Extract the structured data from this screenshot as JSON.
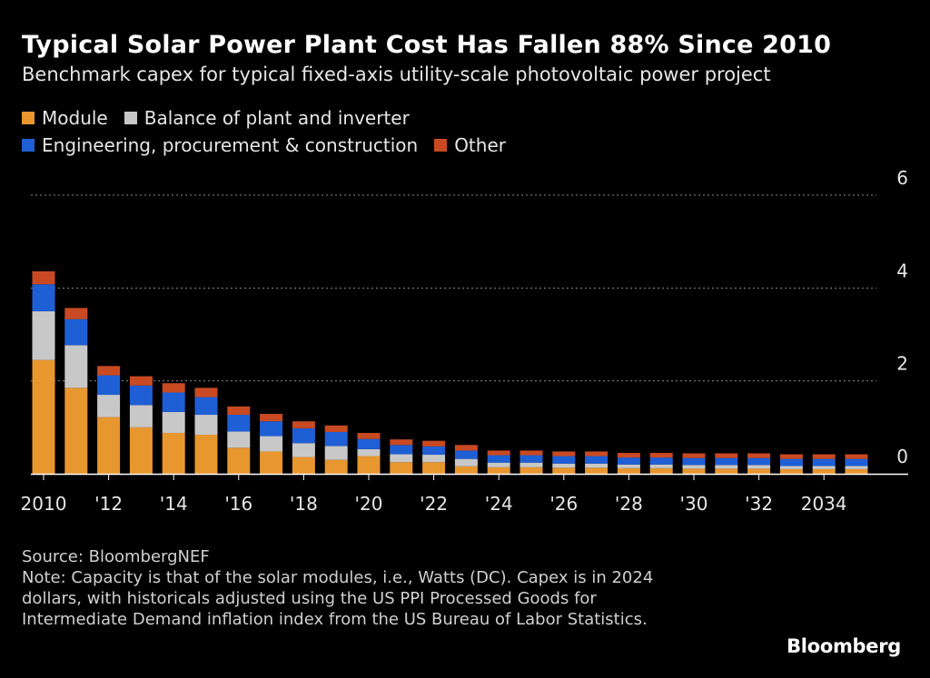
{
  "title": "Typical Solar Power Plant Cost Has Fallen 88% Since 2010",
  "subtitle": "Benchmark capex for typical fixed-axis utility-scale photovoltaic power project",
  "source": "Source: BloombergNEF",
  "note": "Note: Capacity is that of the solar modules, i.e., Watts (DC). Capex is in 2024 dollars, with historicals adjusted using the US PPI Processed Goods for Intermediate Demand inflation index from the US Bureau of Labor Statistics.",
  "brand": "Bloomberg",
  "colors": {
    "background": "#000000",
    "module": "#e8962e",
    "balance": "#c8c8c8",
    "epc": "#1f5fd6",
    "other": "#c94a22",
    "grid": "#8a8a8a"
  },
  "chart_data": {
    "type": "bar",
    "stacked": true,
    "legend_placement": "top-left",
    "grid": true,
    "ylim": [
      0,
      6
    ],
    "y_ticks": [
      0,
      2,
      4,
      6
    ],
    "x": [
      2010,
      2011,
      2012,
      2013,
      2014,
      2015,
      2016,
      2017,
      2018,
      2019,
      2020,
      2021,
      2022,
      2023,
      2024,
      2025,
      2026,
      2027,
      2028,
      2029,
      2030,
      2031,
      2032,
      2033,
      2034,
      2035
    ],
    "x_tick_labels": [
      {
        "x": 2010,
        "label": "2010"
      },
      {
        "x": 2012,
        "label": "'12"
      },
      {
        "x": 2014,
        "label": "'14"
      },
      {
        "x": 2016,
        "label": "'16"
      },
      {
        "x": 2018,
        "label": "'18"
      },
      {
        "x": 2020,
        "label": "'20"
      },
      {
        "x": 2022,
        "label": "'22"
      },
      {
        "x": 2024,
        "label": "'24"
      },
      {
        "x": 2026,
        "label": "'26"
      },
      {
        "x": 2028,
        "label": "'28"
      },
      {
        "x": 2030,
        "label": "'30"
      },
      {
        "x": 2032,
        "label": "'32"
      },
      {
        "x": 2034,
        "label": "2034"
      }
    ],
    "series": [
      {
        "name": "Module",
        "color": "#e8962e",
        "values": [
          2.45,
          1.85,
          1.22,
          1.0,
          0.88,
          0.84,
          0.56,
          0.48,
          0.36,
          0.3,
          0.38,
          0.25,
          0.25,
          0.16,
          0.14,
          0.14,
          0.13,
          0.13,
          0.12,
          0.12,
          0.11,
          0.11,
          0.11,
          0.1,
          0.1,
          0.1
        ]
      },
      {
        "name": "Balance of plant and inverter",
        "color": "#c8c8c8",
        "values": [
          1.05,
          0.92,
          0.48,
          0.48,
          0.45,
          0.43,
          0.35,
          0.33,
          0.3,
          0.3,
          0.15,
          0.17,
          0.16,
          0.16,
          0.1,
          0.1,
          0.09,
          0.09,
          0.08,
          0.08,
          0.08,
          0.08,
          0.08,
          0.07,
          0.07,
          0.07
        ]
      },
      {
        "name": "Engineering, procurement & construction",
        "color": "#1f5fd6",
        "values": [
          0.58,
          0.56,
          0.42,
          0.42,
          0.42,
          0.38,
          0.36,
          0.32,
          0.32,
          0.3,
          0.22,
          0.2,
          0.18,
          0.18,
          0.16,
          0.16,
          0.16,
          0.16,
          0.15,
          0.15,
          0.15,
          0.15,
          0.15,
          0.15,
          0.15,
          0.15
        ]
      },
      {
        "name": "Other",
        "color": "#c94a22",
        "values": [
          0.28,
          0.24,
          0.2,
          0.2,
          0.2,
          0.2,
          0.18,
          0.16,
          0.15,
          0.14,
          0.13,
          0.12,
          0.12,
          0.12,
          0.1,
          0.1,
          0.1,
          0.1,
          0.1,
          0.1,
          0.1,
          0.1,
          0.1,
          0.1,
          0.1,
          0.1
        ]
      }
    ]
  }
}
